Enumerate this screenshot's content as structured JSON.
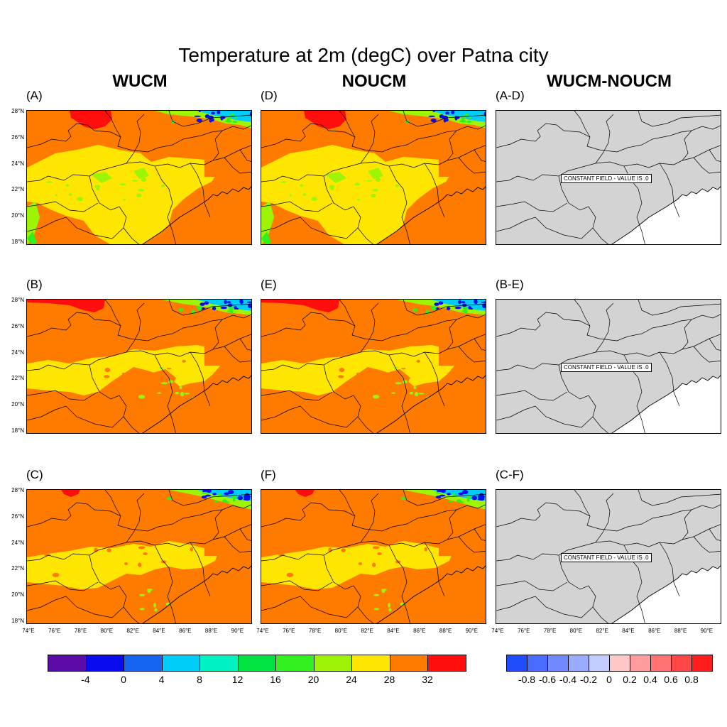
{
  "title": "Temperature at 2m (degC) over Patna city",
  "columns": [
    "WUCM",
    "NOUCM",
    "WUCM-NOUCM"
  ],
  "panels": [
    {
      "label": "(A)",
      "kind": "temp",
      "variant": 0
    },
    {
      "label": "(D)",
      "kind": "temp",
      "variant": 0
    },
    {
      "label": "(A-D)",
      "kind": "diff"
    },
    {
      "label": "(B)",
      "kind": "temp",
      "variant": 1
    },
    {
      "label": "(E)",
      "kind": "temp",
      "variant": 1
    },
    {
      "label": "(B-E)",
      "kind": "diff"
    },
    {
      "label": "(C)",
      "kind": "temp",
      "variant": 2
    },
    {
      "label": "(F)",
      "kind": "temp",
      "variant": 2
    },
    {
      "label": "(C-F)",
      "kind": "diff"
    }
  ],
  "constant_field_text": "CONSTANT FIELD - VALUE IS .0",
  "lat_labels": [
    "28°N",
    "26°N",
    "24°N",
    "22°N",
    "20°N",
    "18°N"
  ],
  "lon_labels": [
    "74°E",
    "76°E",
    "78°E",
    "80°E",
    "82°E",
    "84°E",
    "86°E",
    "88°E",
    "90°E"
  ],
  "colorbar_temp": {
    "colors": [
      "#5b0ca8",
      "#0b0bf0",
      "#1665f2",
      "#00cdf8",
      "#00f2c1",
      "#00e240",
      "#32f01d",
      "#9df505",
      "#ffe600",
      "#ff7b00",
      "#ff0e0e"
    ],
    "labels": [
      "-4",
      "0",
      "4",
      "8",
      "12",
      "16",
      "20",
      "24",
      "28",
      "32"
    ]
  },
  "colorbar_diff": {
    "colors": [
      "#1f4cff",
      "#4a6bff",
      "#7089ff",
      "#9aacff",
      "#c3cdff",
      "#ffc8c8",
      "#ff9d9d",
      "#ff7373",
      "#ff4646",
      "#ff1c1c"
    ],
    "labels": [
      "-0.8",
      "-0.6",
      "-0.4",
      "-0.2",
      "0",
      "0.2",
      "0.4",
      "0.6",
      "0.8"
    ]
  },
  "map_colors": {
    "orange": "#ff7b00",
    "yellow": "#ffe600",
    "red": "#ff0e0e",
    "lime": "#9df505",
    "green": "#32f01d",
    "blue": "#0b0bf0",
    "cyan": "#00cdf8",
    "gray": "#d3d3d3"
  }
}
